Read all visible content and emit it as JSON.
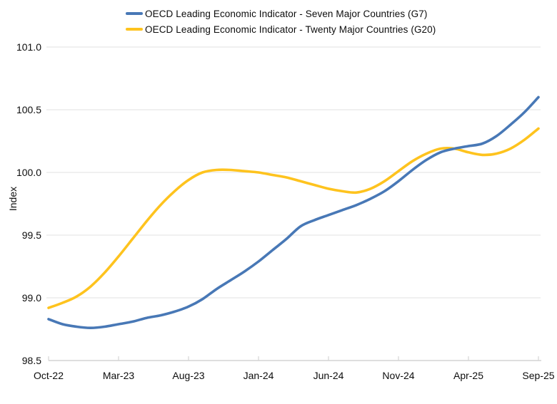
{
  "legend": {
    "items": [
      {
        "id": "g7",
        "label": "OECD Leading Economic Indicator - Seven Major Countries (G7)",
        "color": "#4878b6"
      },
      {
        "id": "g20",
        "label": "OECD Leading Economic Indicator - Twenty Major Countries (G20)",
        "color": "#fec31e"
      }
    ]
  },
  "chart_data": {
    "type": "line",
    "x": [
      "Oct-22",
      "Nov-22",
      "Dec-22",
      "Jan-23",
      "Feb-23",
      "Mar-23",
      "Apr-23",
      "May-23",
      "Jun-23",
      "Jul-23",
      "Aug-23",
      "Sep-23",
      "Oct-23",
      "Nov-23",
      "Dec-23",
      "Jan-24",
      "Feb-24",
      "Mar-24",
      "Apr-24",
      "May-24",
      "Jun-24",
      "Jul-24",
      "Aug-24",
      "Sep-24",
      "Oct-24",
      "Nov-24",
      "Dec-24",
      "Jan-25",
      "Feb-25",
      "Mar-25",
      "Apr-25",
      "May-25",
      "Jun-25",
      "Jul-25",
      "Aug-25",
      "Sep-25"
    ],
    "series": [
      {
        "id": "g7",
        "name": "OECD Leading Economic Indicator - Seven Major Countries (G7)",
        "color": "#4878b6",
        "values": [
          98.83,
          98.79,
          98.77,
          98.76,
          98.77,
          98.79,
          98.81,
          98.84,
          98.86,
          98.89,
          98.93,
          98.99,
          99.07,
          99.14,
          99.21,
          99.29,
          99.38,
          99.47,
          99.57,
          99.62,
          99.66,
          99.7,
          99.74,
          99.79,
          99.85,
          99.93,
          100.02,
          100.1,
          100.16,
          100.19,
          100.21,
          100.23,
          100.29,
          100.38,
          100.48,
          100.6
        ]
      },
      {
        "id": "g20",
        "name": "OECD Leading Economic Indicator - Twenty Major Countries (G20)",
        "color": "#fec31e",
        "values": [
          98.92,
          98.96,
          99.01,
          99.09,
          99.2,
          99.33,
          99.47,
          99.61,
          99.74,
          99.85,
          99.94,
          100.0,
          100.02,
          100.02,
          100.01,
          100.0,
          99.98,
          99.96,
          99.93,
          99.9,
          99.87,
          99.85,
          99.84,
          99.87,
          99.93,
          100.01,
          100.09,
          100.15,
          100.19,
          100.19,
          100.16,
          100.14,
          100.15,
          100.19,
          100.26,
          100.35
        ]
      }
    ],
    "title": "",
    "xlabel": "",
    "ylabel": "Index",
    "ylim": [
      98.5,
      101.0
    ],
    "y_ticks": [
      98.5,
      99.0,
      99.5,
      100.0,
      100.5,
      101.0
    ],
    "x_tick_labels": [
      "Oct-22",
      "Mar-23",
      "Aug-23",
      "Jan-24",
      "Jun-24",
      "Nov-24",
      "Apr-25",
      "Sep-25"
    ],
    "grid": "horizontal",
    "legend_position": "top"
  }
}
